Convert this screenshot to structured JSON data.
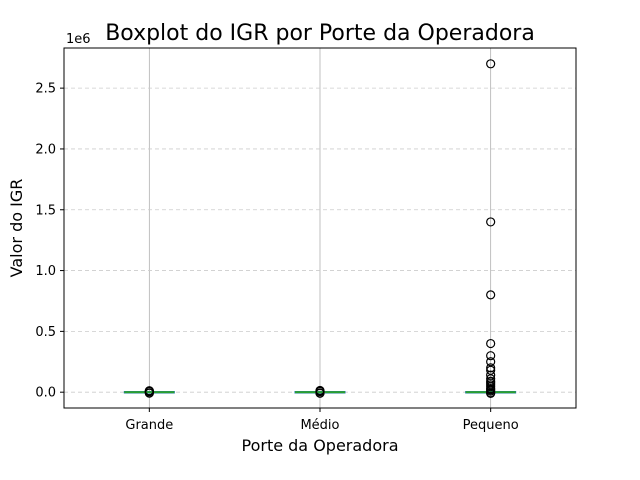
{
  "chart_data": {
    "type": "boxplot",
    "title": "Boxplot do IGR por Porte da Operadora",
    "xlabel": "Porte da Operadora",
    "ylabel": "Valor do IGR",
    "y_offset_label": "1e6",
    "categories": [
      "Grande",
      "Médio",
      "Pequeno"
    ],
    "ylim": [
      -130000,
      2830000
    ],
    "yticks": [
      0,
      500000,
      1000000,
      1500000,
      2000000,
      2500000
    ],
    "ytick_labels": [
      "0.0",
      "0.5",
      "1.0",
      "1.5",
      "2.0",
      "2.5"
    ],
    "grid": "y-dashed, x-solid",
    "colors": {
      "box": "#1f77b4",
      "median": "#2ca02c",
      "grid": "#b0b0b0"
    },
    "series": [
      {
        "category": "Grande",
        "q1": -1500,
        "median": 0,
        "q3": 1500,
        "whisker_low": -4000,
        "whisker_high": 4000,
        "outliers": [
          -8000,
          -5000,
          6000,
          9000,
          12000
        ]
      },
      {
        "category": "Médio",
        "q1": -1500,
        "median": 0,
        "q3": 1500,
        "whisker_low": -4000,
        "whisker_high": 4000,
        "outliers": [
          -9000,
          -6000,
          6000,
          10000,
          14000
        ]
      },
      {
        "category": "Pequeno",
        "q1": -1500,
        "median": 0,
        "q3": 1500,
        "whisker_low": -4000,
        "whisker_high": 4000,
        "outliers": [
          2700000,
          1400000,
          800000,
          400000,
          300000,
          250000,
          200000,
          180000,
          140000,
          110000,
          90000,
          75000,
          60000,
          45000,
          30000,
          20000,
          10000,
          -5000,
          -10000
        ]
      }
    ]
  }
}
